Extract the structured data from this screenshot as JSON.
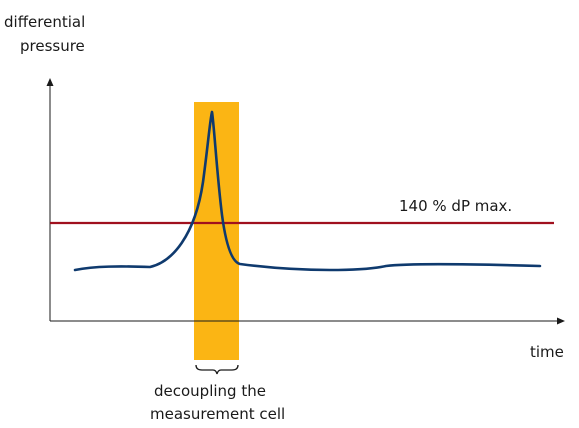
{
  "y_axis_label": {
    "line1": "differential",
    "line2": "pressure"
  },
  "x_axis_label": "time",
  "threshold": {
    "label": "140 % dP max.",
    "color": "#A0101E"
  },
  "curve": {
    "color": "#0F3A6E"
  },
  "highlight": {
    "color": "#FBB514",
    "caption": {
      "line1": "decoupling the",
      "line2": "measurement cell"
    }
  },
  "axis_color": "#1a1a1a"
}
